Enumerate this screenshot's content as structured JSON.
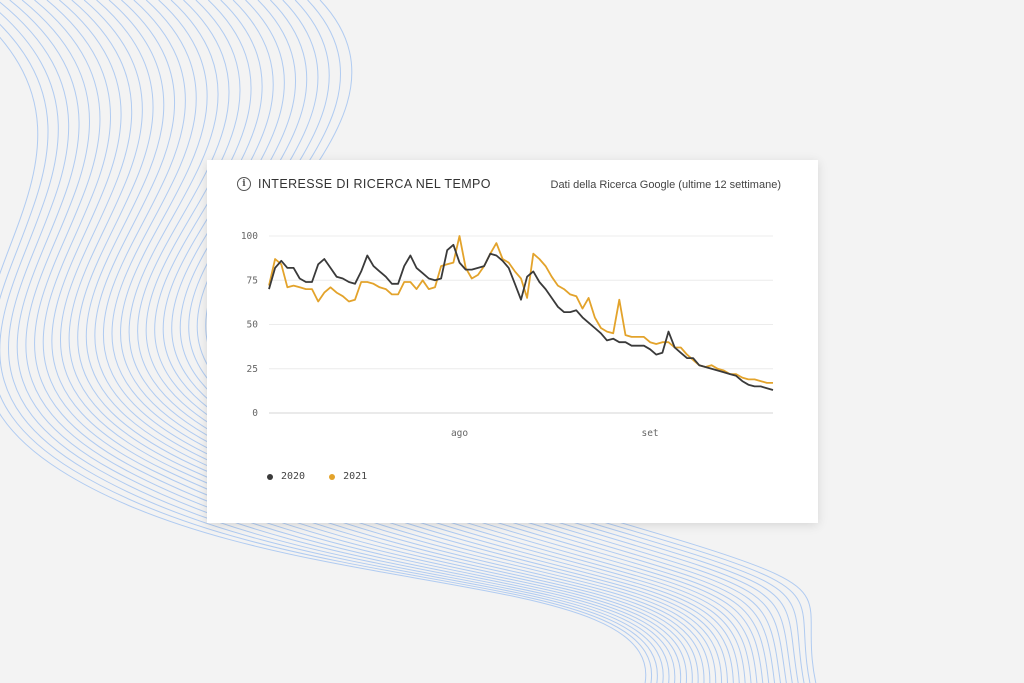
{
  "header": {
    "title": "INTERESSE DI RICERCA NEL TEMPO",
    "source": "Dati della Ricerca Google (ultime 12 settimane)"
  },
  "colors": {
    "series_2020": "#3a3a3a",
    "series_2021": "#e3a32b",
    "background_lines": "#a9c7f1"
  },
  "chart_data": {
    "type": "line",
    "title": "INTERESSE DI RICERCA NEL TEMPO",
    "xlabel": "",
    "ylabel": "",
    "ylim": [
      0,
      100
    ],
    "yticks": [
      0,
      25,
      50,
      75,
      100
    ],
    "x_ticks": [
      {
        "label": "ago",
        "index": 31
      },
      {
        "label": "set",
        "index": 62
      }
    ],
    "grid": true,
    "legend": "bottom-left",
    "series": [
      {
        "name": "2020",
        "values": [
          70,
          82,
          86,
          82,
          82,
          76,
          74,
          74,
          84,
          87,
          82,
          77,
          76,
          74,
          73,
          80,
          89,
          83,
          80,
          77,
          73,
          73,
          83,
          89,
          82,
          79,
          76,
          75,
          76,
          92,
          95,
          85,
          81,
          81,
          82,
          83,
          90,
          89,
          86,
          82,
          73,
          64,
          77,
          80,
          74,
          70,
          65,
          60,
          57,
          57,
          58,
          54,
          51,
          48,
          45,
          41,
          42,
          40,
          40,
          38,
          38,
          38,
          36,
          33,
          34,
          46,
          37,
          34,
          31,
          31,
          27,
          26,
          25,
          24,
          23,
          22,
          21,
          18,
          16,
          15,
          15,
          14,
          13
        ]
      },
      {
        "name": "2021",
        "values": [
          72,
          87,
          84,
          71,
          72,
          71,
          70,
          70,
          63,
          68,
          71,
          68,
          66,
          63,
          64,
          74,
          74,
          73,
          71,
          70,
          67,
          67,
          74,
          74,
          70,
          75,
          70,
          71,
          83,
          84,
          85,
          100,
          82,
          76,
          78,
          83,
          90,
          96,
          87,
          85,
          80,
          76,
          65,
          90,
          87,
          83,
          77,
          72,
          70,
          67,
          66,
          59,
          65,
          54,
          48,
          46,
          45,
          64,
          44,
          43,
          43,
          43,
          40,
          39,
          40,
          40,
          37,
          37,
          33,
          30,
          27,
          26,
          27,
          25,
          24,
          22,
          22,
          20,
          19,
          19,
          18,
          17,
          17
        ]
      }
    ]
  },
  "legend": [
    {
      "label": "2020"
    },
    {
      "label": "2021"
    }
  ]
}
